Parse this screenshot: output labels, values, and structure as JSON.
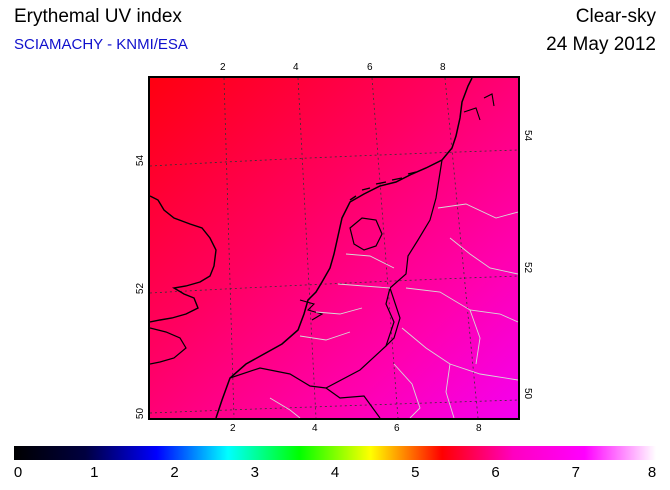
{
  "header": {
    "title": "Erythemal UV index",
    "subtitle": "SCIAMACHY - KNMI/ESA",
    "mode": "Clear-sky",
    "date": "24 May 2012"
  },
  "map": {
    "lon_ticks_top": [
      "2",
      "4",
      "6",
      "8"
    ],
    "lon_ticks_bottom": [
      "2",
      "4",
      "6",
      "8"
    ],
    "lat_ticks_left": [
      "50",
      "52",
      "54"
    ],
    "lat_ticks_right": [
      "50",
      "52",
      "54"
    ],
    "field": {
      "variable": "UV index",
      "north_west_value": 6.0,
      "south_east_value": 7.4
    },
    "colors": {
      "coastline": "#000000",
      "borders": "#d8d8d8",
      "graticule": "#333333"
    }
  },
  "colorbar": {
    "labels": [
      "0",
      "1",
      "2",
      "3",
      "4",
      "5",
      "6",
      "7",
      "8"
    ],
    "range": [
      0,
      8
    ],
    "stops": [
      "#000000",
      "#000040",
      "#0000ff",
      "#00ffff",
      "#00ff00",
      "#ffff00",
      "#ff0000",
      "#ff00c0",
      "#ff00ff",
      "#ffffff"
    ]
  }
}
